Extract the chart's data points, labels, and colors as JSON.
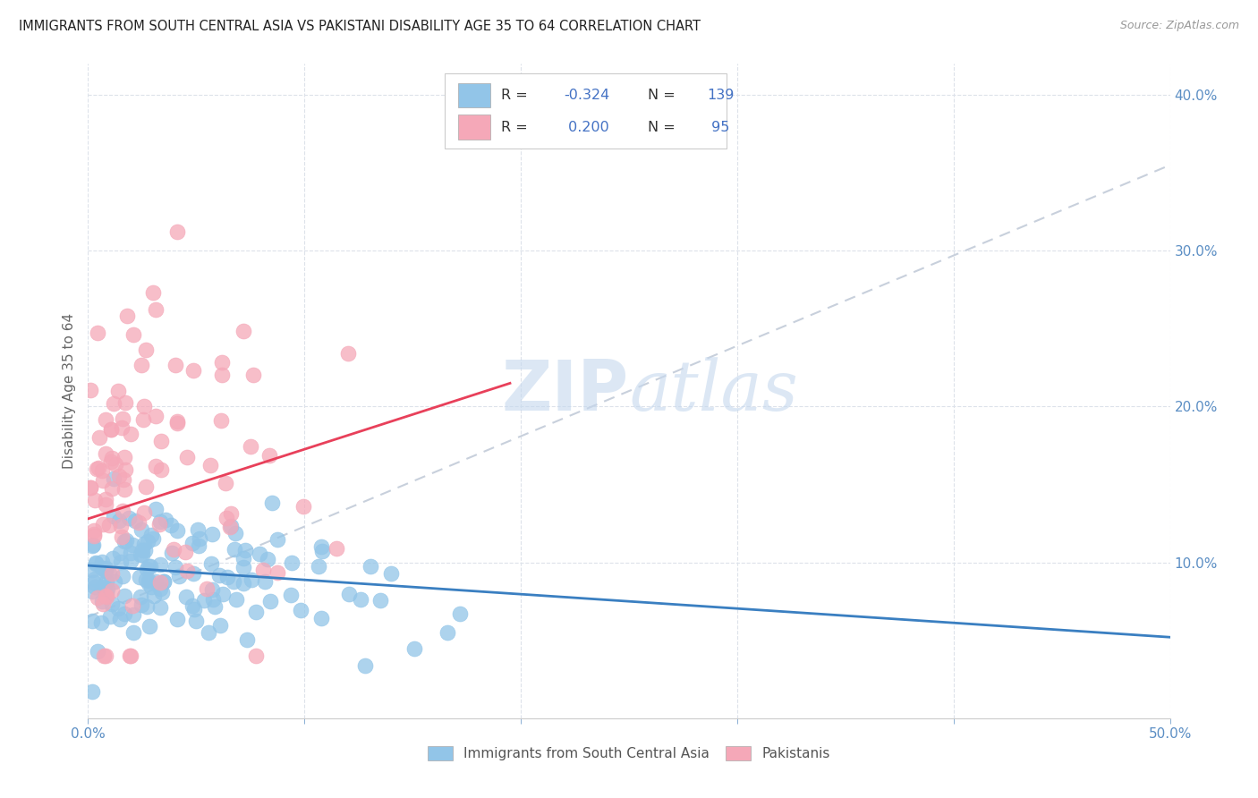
{
  "title": "IMMIGRANTS FROM SOUTH CENTRAL ASIA VS PAKISTANI DISABILITY AGE 35 TO 64 CORRELATION CHART",
  "source": "Source: ZipAtlas.com",
  "ylabel": "Disability Age 35 to 64",
  "xlim": [
    0.0,
    0.5
  ],
  "ylim": [
    0.0,
    0.42
  ],
  "blue_R": -0.324,
  "blue_N": 139,
  "pink_R": 0.2,
  "pink_N": 95,
  "blue_color": "#92c5e8",
  "pink_color": "#f5a8b8",
  "blue_line_color": "#3a7fc1",
  "pink_line_color": "#e8405a",
  "dashed_line_color": "#c8d0dc",
  "watermark_zip": "ZIP",
  "watermark_atlas": "atlas",
  "background_color": "#ffffff",
  "grid_color": "#dde2ea",
  "tick_color": "#5b8ec4",
  "legend_label_color": "#333333",
  "legend_value_color": "#4472c4",
  "blue_line_x0": 0.0,
  "blue_line_x1": 0.5,
  "blue_line_y0": 0.098,
  "blue_line_y1": 0.052,
  "pink_line_x0": 0.0,
  "pink_line_x1": 0.195,
  "pink_line_y0": 0.128,
  "pink_line_y1": 0.215,
  "dash_line_x0": 0.0,
  "dash_line_x1": 0.5,
  "dash_line_y0": 0.065,
  "dash_line_y1": 0.355
}
